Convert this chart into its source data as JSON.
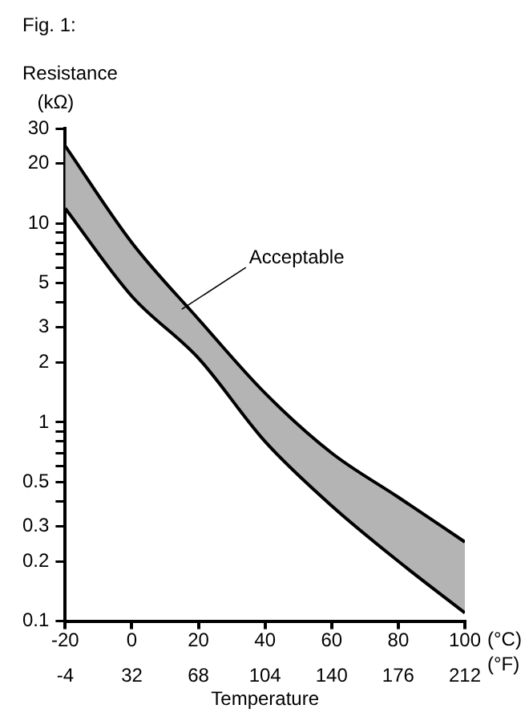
{
  "chart_data": {
    "type": "line",
    "title": "Fig. 1:",
    "ylabel": "Resistance",
    "xlabel": "Temperature",
    "annotations": [
      "(kΩ)",
      "(°C)",
      "(°F)",
      {
        "text": "Acceptable",
        "x": 15,
        "y": 3.7
      }
    ],
    "x": [
      -20,
      0,
      20,
      40,
      60,
      80,
      100
    ],
    "series": [
      {
        "type": "area",
        "color": "#b4b4b4",
        "values": [
          24.5,
          8,
          3.3,
          1.4,
          0.7,
          0.42,
          0.25
        ]
      },
      {
        "type": "line",
        "color": "#000000",
        "values": [
          11.9,
          4.3,
          2.1,
          0.8,
          0.38,
          0.2,
          0.11
        ]
      }
    ],
    "log": "y",
    "ylim": [
      0.1,
      30
    ],
    "yticks": [
      0.1,
      0.2,
      0.3,
      {
        "value": 0.4,
        "label": null
      },
      0.5,
      {
        "value": 0.6,
        "label": null
      },
      {
        "value": 0.7,
        "label": null
      },
      {
        "value": 0.8,
        "label": null
      },
      {
        "value": 0.9,
        "label": null
      },
      1,
      2,
      3,
      {
        "value": 4,
        "label": null
      },
      5,
      {
        "value": 6,
        "label": null
      },
      {
        "value": 7,
        "label": null
      },
      {
        "value": 8,
        "label": null
      },
      {
        "value": 9,
        "label": null
      },
      10,
      20,
      30
    ],
    "xlim": [
      -20,
      100
    ],
    "xticks": [
      -20,
      0,
      20,
      40,
      60,
      80,
      100
    ],
    "x2lim": [
      -4,
      212
    ],
    "x2ticks": [
      -4,
      32,
      68,
      104,
      140,
      176,
      212
    ],
    "grid": false,
    "legend": false,
    "marker": "none",
    "line_style": "solid"
  }
}
